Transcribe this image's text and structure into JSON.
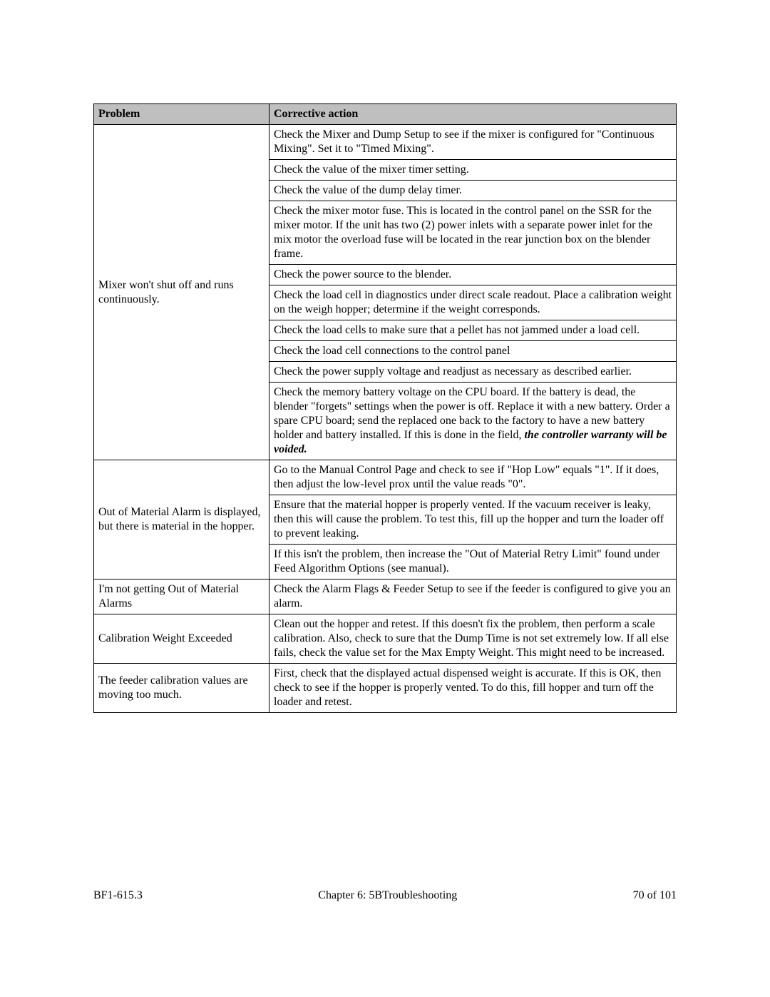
{
  "header": {
    "problem": "Problem",
    "action": "Corrective action"
  },
  "sections": [
    {
      "problem": "Mixer won't shut off and runs continuously.",
      "actions": [
        "Check the Mixer and Dump Setup to see if the mixer is configured for \"Continuous Mixing\".  Set it to \"Timed Mixing\".",
        "Check the value of the mixer timer setting.",
        "Check the value of the dump delay timer.",
        "Check the mixer motor fuse. This is located in the control panel on the SSR for the mixer motor. If the unit has two (2) power inlets with a separate power inlet for the mix motor the overload fuse will be located in the rear junction box on the blender frame.",
        "Check the power source to the blender.",
        "Check the load cell in diagnostics under direct scale readout. Place a calibration weight on the weigh hopper; determine if the weight corresponds.",
        "Check the load cells to make sure that a pellet has not jammed under a load cell.",
        "Check the load cell connections to the control panel",
        "Check the power supply voltage and readjust as necessary as described earlier.",
        "Check the memory battery voltage on the CPU board. If the battery is dead, the blender \"forgets\" settings when the power is off. Replace it with a new battery. Order a spare CPU board; send the replaced one back to the factory to have a new battery holder and battery installed. If this is done in the field, "
      ],
      "last_emph": "the controller warranty will be voided.",
      "has_emph": true
    },
    {
      "problem": "Out of Material Alarm is displayed, but there is material in the hopper.",
      "actions": [
        "Go to the Manual Control Page and check to see if \"Hop Low\" equals \"1\".  If it does, then adjust the low-level prox until the value reads \"0\".",
        "Ensure that the material hopper is properly vented.  If the vacuum receiver is leaky, then this will cause the problem.  To test this, fill up the hopper and turn the loader off to prevent leaking.",
        "If this isn't the problem, then increase the \"Out of Material Retry Limit\" found under Feed Algorithm Options (see manual)."
      ]
    },
    {
      "problem": "I'm not getting Out of Material Alarms",
      "actions": [
        "Check the Alarm Flags & Feeder Setup to see if the feeder is configured to give you an alarm."
      ]
    },
    {
      "problem": "Calibration Weight Exceeded",
      "actions": [
        "Clean out the hopper and retest.  If this doesn't fix the problem, then perform a scale calibration.  Also, check to sure that the Dump Time is not set extremely low.  If all else fails, check the value set for the Max Empty Weight.  This might need to be increased."
      ]
    },
    {
      "problem": "The feeder calibration values are moving too much.",
      "actions": [
        "First, check that the displayed actual dispensed weight is accurate.  If this is OK, then check to see if the hopper is properly vented.  To do this, fill hopper and turn off the loader and retest."
      ]
    }
  ],
  "footer": {
    "left": "BF1-615.3",
    "center": "Chapter 6: 5BTroubleshooting",
    "right": "70 of 101"
  }
}
